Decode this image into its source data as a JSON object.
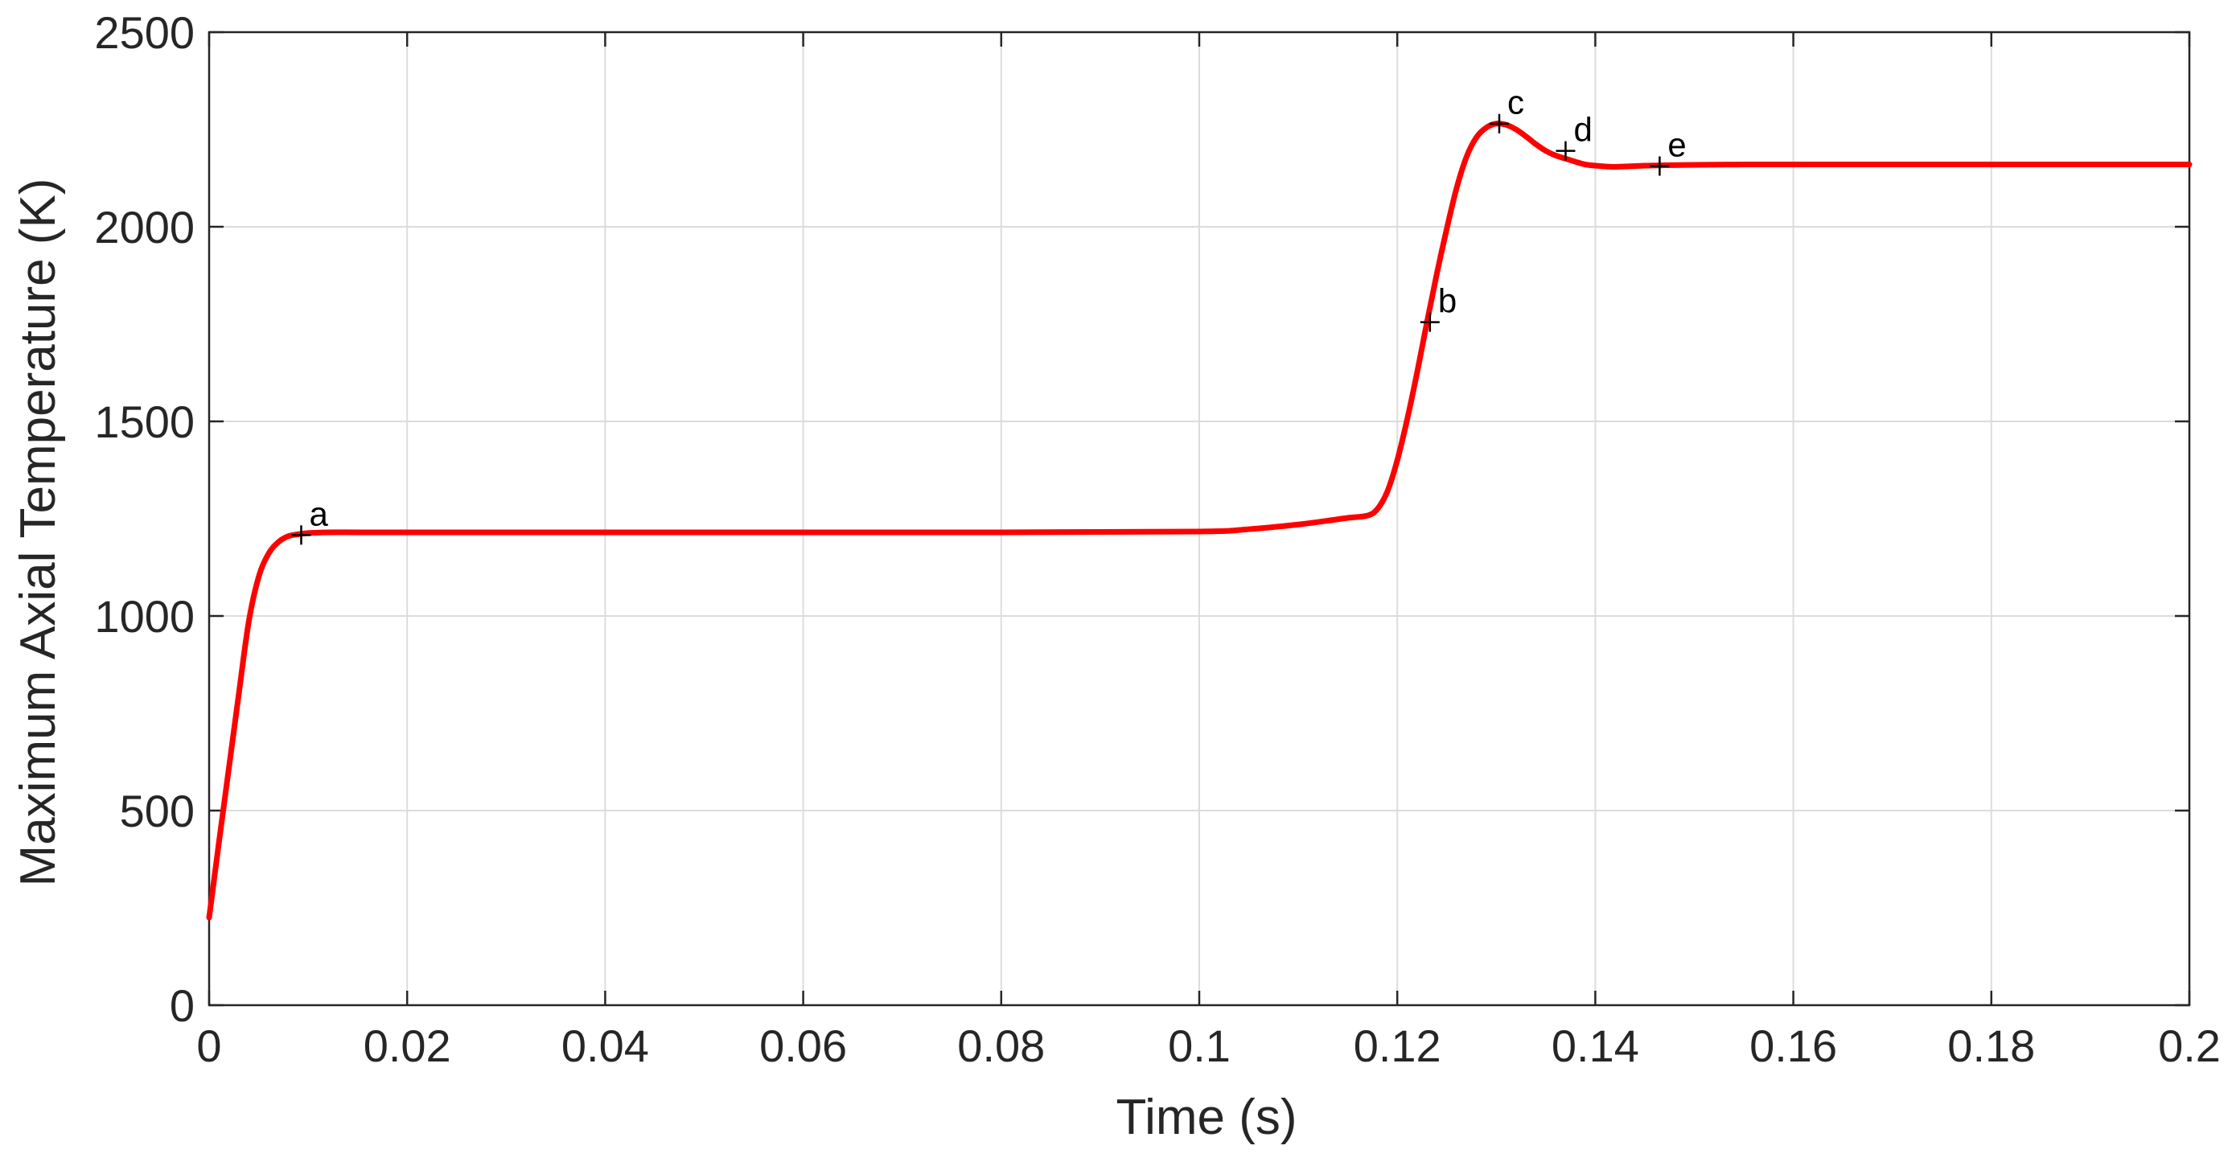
{
  "chart_data": {
    "type": "line",
    "title": "",
    "xlabel": "Time (s)",
    "ylabel": "Maximum Axial Temperature (K)",
    "xlim": [
      0,
      0.2
    ],
    "ylim": [
      0,
      2500
    ],
    "xticks": [
      0,
      0.02,
      0.04,
      0.06,
      0.08,
      0.1,
      0.12,
      0.14,
      0.16,
      0.18,
      0.2
    ],
    "xtick_labels": [
      "0",
      "0.02",
      "0.04",
      "0.06",
      "0.08",
      "0.1",
      "0.12",
      "0.14",
      "0.16",
      "0.18",
      "0.2"
    ],
    "yticks": [
      0,
      500,
      1000,
      1500,
      2000,
      2500
    ],
    "ytick_labels": [
      "0",
      "500",
      "1000",
      "1500",
      "2000",
      "2500"
    ],
    "grid": true,
    "series": [
      {
        "color": "#ff0000",
        "x": [
          0,
          0.001,
          0.002,
          0.003,
          0.004,
          0.005,
          0.006,
          0.007,
          0.008,
          0.009,
          0.01,
          0.012,
          0.015,
          0.02,
          0.03,
          0.05,
          0.08,
          0.1,
          0.105,
          0.11,
          0.113,
          0.115,
          0.117,
          0.118,
          0.119,
          0.12,
          0.121,
          0.122,
          0.123,
          0.124,
          0.125,
          0.126,
          0.127,
          0.128,
          0.129,
          0.13,
          0.131,
          0.132,
          0.133,
          0.134,
          0.135,
          0.136,
          0.137,
          0.138,
          0.139,
          0.14,
          0.141,
          0.142,
          0.143,
          0.145,
          0.147,
          0.15,
          0.155,
          0.16,
          0.17,
          0.18,
          0.19,
          0.2
        ],
        "y": [
          225,
          420,
          610,
          800,
          985,
          1100,
          1160,
          1190,
          1205,
          1210,
          1213,
          1215,
          1215,
          1215,
          1215,
          1215,
          1215,
          1217,
          1223,
          1235,
          1245,
          1252,
          1258,
          1275,
          1320,
          1400,
          1505,
          1625,
          1755,
          1880,
          1995,
          2100,
          2180,
          2230,
          2255,
          2265,
          2262,
          2250,
          2232,
          2212,
          2195,
          2183,
          2175,
          2167,
          2160,
          2157,
          2155,
          2154,
          2155,
          2157,
          2158,
          2159,
          2160,
          2160,
          2160,
          2160,
          2160,
          2160
        ]
      }
    ],
    "annotations": [
      {
        "label": "a",
        "x": 0.0093,
        "y": 1208
      },
      {
        "label": "b",
        "x": 0.1233,
        "y": 1755
      },
      {
        "label": "c",
        "x": 0.1303,
        "y": 2265
      },
      {
        "label": "d",
        "x": 0.137,
        "y": 2195
      },
      {
        "label": "e",
        "x": 0.1465,
        "y": 2156
      }
    ]
  }
}
